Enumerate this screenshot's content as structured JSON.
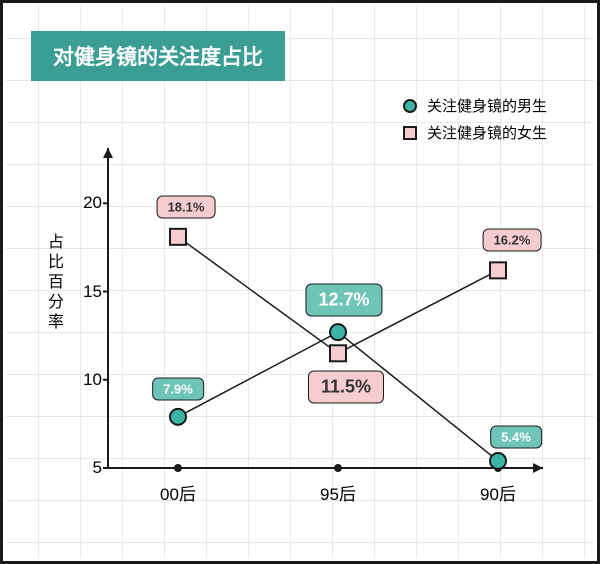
{
  "title": "对健身镜的关注度占比",
  "title_bg": "#3b9e95",
  "title_fontsize": 21,
  "y_axis_label": "占比百分率",
  "legend": {
    "male": {
      "label": "关注健身镜的男生",
      "color": "#3bb3a5",
      "shape": "circle"
    },
    "female": {
      "label": "关注健身镜的女生",
      "color": "#f5cdd0",
      "shape": "square"
    }
  },
  "chart": {
    "type": "line",
    "ylim": [
      5,
      22
    ],
    "yticks": [
      5,
      10,
      15,
      20
    ],
    "categories": [
      "00后",
      "95后",
      "90后"
    ],
    "baseline_dot_color": "#1a1a1a",
    "series": {
      "male": {
        "values": [
          7.9,
          12.7,
          5.4
        ],
        "labels": [
          "7.9%",
          "12.7%",
          "5.4%"
        ],
        "marker_fill": "#3bb3a5",
        "label_bg": "#6fc4b8",
        "label_text": "#ffffff"
      },
      "female": {
        "values": [
          18.1,
          11.5,
          16.2
        ],
        "labels": [
          "18.1%",
          "11.5%",
          "16.2%"
        ],
        "marker_fill": "#f5cdd0",
        "label_bg": "#f5cdd0",
        "label_text": "#333333"
      }
    },
    "line_color": "#1a1a1a",
    "marker_stroke": "#1a1a1a",
    "grid_color": "#e8e8e8",
    "axis_color": "#1a1a1a"
  }
}
